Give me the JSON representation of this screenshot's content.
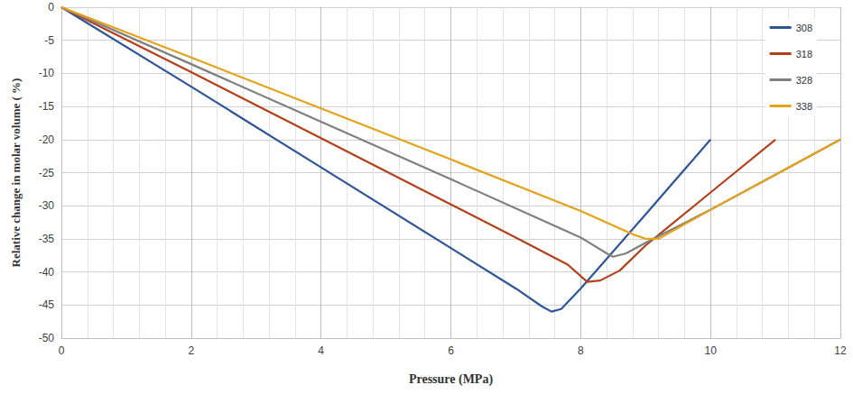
{
  "chart_data": {
    "type": "line",
    "x_label": "Pressure (MPa)",
    "y_label": "Relative change in molar volume ( %)",
    "xlim": [
      0,
      12
    ],
    "xticks": [
      0,
      2,
      4,
      6,
      8,
      10,
      12
    ],
    "ylim": [
      -50,
      0
    ],
    "yticks": [
      -50,
      -45,
      -40,
      -35,
      -30,
      -25,
      -20,
      -15,
      -10,
      -5,
      0
    ],
    "grid": true,
    "legend": "upper right",
    "series": [
      {
        "name": "308",
        "color": "#2E5597",
        "x": [
          0,
          2,
          4,
          6,
          7,
          7.4,
          7.55,
          7.7,
          8,
          9,
          10
        ],
        "values": [
          0,
          -12,
          -24.2,
          -36.4,
          -42.5,
          -45.2,
          -46,
          -45.6,
          -42.5,
          -31.3,
          -20
        ]
      },
      {
        "name": "318",
        "color": "#B3401B",
        "x": [
          0,
          2,
          4,
          6,
          7,
          7.8,
          8.1,
          8.3,
          8.6,
          9,
          10,
          11
        ],
        "values": [
          0,
          -9.8,
          -19.8,
          -29.8,
          -34.8,
          -38.9,
          -41.5,
          -41.3,
          -39.8,
          -36,
          -28,
          -20
        ]
      },
      {
        "name": "328",
        "color": "#7F7F7F",
        "x": [
          0,
          2,
          4,
          6,
          8,
          8.4,
          8.5,
          8.7,
          9,
          10,
          11,
          12
        ],
        "values": [
          0,
          -8.6,
          -17.3,
          -26,
          -34.8,
          -37.2,
          -37.7,
          -37.2,
          -35.6,
          -30.6,
          -25.3,
          -20
        ]
      },
      {
        "name": "338",
        "color": "#E3A21A",
        "x": [
          0,
          2,
          4,
          6,
          8,
          8.8,
          9,
          9.2,
          10,
          11,
          12
        ],
        "values": [
          0,
          -7.6,
          -15.3,
          -23,
          -30.8,
          -34.3,
          -35,
          -35,
          -30.6,
          -25.3,
          -20
        ]
      }
    ]
  }
}
